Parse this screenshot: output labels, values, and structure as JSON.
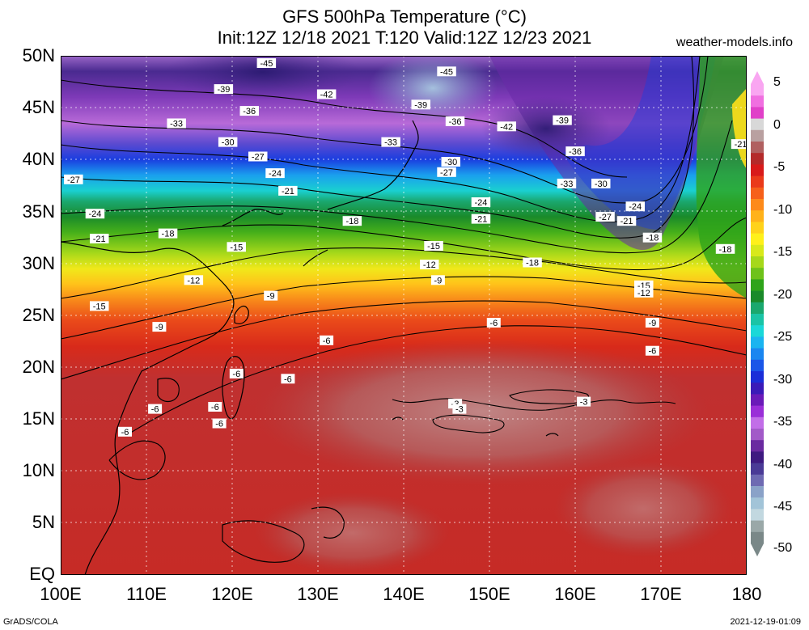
{
  "title": {
    "line1": "GFS 500hPa Temperature (°C)",
    "line2": "Init:12Z 12/18 2021 T:120 Valid:12Z 12/23 2021"
  },
  "credit": "weather-models.info",
  "latitudes": [
    "50N",
    "45N",
    "40N",
    "35N",
    "30N",
    "25N",
    "20N",
    "15N",
    "10N",
    "5N",
    "EQ"
  ],
  "longitudes": [
    "100E",
    "110E",
    "120E",
    "130E",
    "140E",
    "150E",
    "160E",
    "170E",
    "180"
  ],
  "colorbar": {
    "labels": [
      "5",
      "0",
      "-5",
      "-10",
      "-15",
      "-20",
      "-25",
      "-30",
      "-35",
      "-40",
      "-45",
      "-50"
    ],
    "colors": [
      "#f9a6f1",
      "#f06fe0",
      "#e040c8",
      "#d8d8d8",
      "#b9a0a0",
      "#b06060",
      "#b42a2a",
      "#d81a1a",
      "#ea3a1a",
      "#f6601a",
      "#fd8a1a",
      "#ffb21a",
      "#ffd21a",
      "#fff01a",
      "#d8e91a",
      "#a6d81a",
      "#6ec21a",
      "#2ea41a",
      "#1a8a2a",
      "#1aa86e",
      "#1ac4a6",
      "#1ad8d8",
      "#1ab4f0",
      "#1a86f0",
      "#1a56e8",
      "#1a2ed8",
      "#3a1ab8",
      "#6a1ab8",
      "#9a2ed8",
      "#c26ee8",
      "#a25ac8",
      "#6a2aa0",
      "#3e1a80",
      "#4a3a96",
      "#6e6ab2",
      "#8aa2c8",
      "#a2c4d8",
      "#c2d8e0",
      "#9aa8a8",
      "#7a8888"
    ]
  },
  "contour_labels": [
    {
      "text": "-45",
      "lon": 124,
      "lat": 49.3
    },
    {
      "text": "-45",
      "lon": 145,
      "lat": 48.5
    },
    {
      "text": "-39",
      "lon": 119,
      "lat": 46.8
    },
    {
      "text": "-42",
      "lon": 131,
      "lat": 46.3
    },
    {
      "text": "-39",
      "lon": 142,
      "lat": 45.3
    },
    {
      "text": "-36",
      "lon": 122,
      "lat": 44.7
    },
    {
      "text": "-33",
      "lon": 113.5,
      "lat": 43.5
    },
    {
      "text": "-36",
      "lon": 146,
      "lat": 43.7
    },
    {
      "text": "-42",
      "lon": 152,
      "lat": 43.2
    },
    {
      "text": "-39",
      "lon": 158.5,
      "lat": 43.8
    },
    {
      "text": "-30",
      "lon": 119.5,
      "lat": 41.7
    },
    {
      "text": "-33",
      "lon": 138.5,
      "lat": 41.7
    },
    {
      "text": "-36",
      "lon": 160,
      "lat": 40.8
    },
    {
      "text": "-27",
      "lon": 123,
      "lat": 40.3
    },
    {
      "text": "-30",
      "lon": 145.5,
      "lat": 39.8
    },
    {
      "text": "-27",
      "lon": 145,
      "lat": 38.8
    },
    {
      "text": "-24",
      "lon": 125,
      "lat": 38.7
    },
    {
      "text": "-27",
      "lon": 101.5,
      "lat": 38.1
    },
    {
      "text": "-33",
      "lon": 159,
      "lat": 37.7
    },
    {
      "text": "-30",
      "lon": 163,
      "lat": 37.7
    },
    {
      "text": "-21",
      "lon": 126.5,
      "lat": 37.0
    },
    {
      "text": "-24",
      "lon": 149,
      "lat": 35.9
    },
    {
      "text": "-24",
      "lon": 104,
      "lat": 34.8
    },
    {
      "text": "-24",
      "lon": 167,
      "lat": 35.5
    },
    {
      "text": "-21",
      "lon": 149,
      "lat": 34.3
    },
    {
      "text": "-27",
      "lon": 163.5,
      "lat": 34.5
    },
    {
      "text": "-21",
      "lon": 166,
      "lat": 34.1
    },
    {
      "text": "-18",
      "lon": 134,
      "lat": 34.1
    },
    {
      "text": "-21",
      "lon": 181,
      "lat": 41.5
    },
    {
      "text": "-18",
      "lon": 112.5,
      "lat": 32.9
    },
    {
      "text": "-21",
      "lon": 104.5,
      "lat": 32.4
    },
    {
      "text": "-18",
      "lon": 169,
      "lat": 32.5
    },
    {
      "text": "-15",
      "lon": 120.5,
      "lat": 31.6
    },
    {
      "text": "-15",
      "lon": 143.5,
      "lat": 31.7
    },
    {
      "text": "-18",
      "lon": 177.5,
      "lat": 31.4
    },
    {
      "text": "-18",
      "lon": 155,
      "lat": 30.1
    },
    {
      "text": "-12",
      "lon": 143,
      "lat": 29.9
    },
    {
      "text": "-12",
      "lon": 115.5,
      "lat": 28.4
    },
    {
      "text": "-9",
      "lon": 144,
      "lat": 28.4
    },
    {
      "text": "-15",
      "lon": 168,
      "lat": 27.9
    },
    {
      "text": "-12",
      "lon": 168,
      "lat": 27.2
    },
    {
      "text": "-9",
      "lon": 124.5,
      "lat": 26.9
    },
    {
      "text": "-15",
      "lon": 104.5,
      "lat": 25.9
    },
    {
      "text": "-6",
      "lon": 150.5,
      "lat": 24.3
    },
    {
      "text": "-9",
      "lon": 169,
      "lat": 24.3
    },
    {
      "text": "-9",
      "lon": 111.5,
      "lat": 23.9
    },
    {
      "text": "-6",
      "lon": 131,
      "lat": 22.6
    },
    {
      "text": "-6",
      "lon": 169,
      "lat": 21.6
    },
    {
      "text": "-6",
      "lon": 120.5,
      "lat": 19.4
    },
    {
      "text": "-6",
      "lon": 126.5,
      "lat": 18.9
    },
    {
      "text": "-3",
      "lon": 146,
      "lat": 16.5
    },
    {
      "text": "-3",
      "lon": 146.5,
      "lat": 16.0
    },
    {
      "text": "-3",
      "lon": 161,
      "lat": 16.7
    },
    {
      "text": "-6",
      "lon": 111,
      "lat": 16.0
    },
    {
      "text": "-6",
      "lon": 118,
      "lat": 16.2
    },
    {
      "text": "-6",
      "lon": 118.5,
      "lat": 14.6
    },
    {
      "text": "-6",
      "lon": 107.5,
      "lat": 13.8
    }
  ],
  "footer": {
    "left": "GrADS/COLA",
    "right": "2021-12-19-01:09"
  }
}
